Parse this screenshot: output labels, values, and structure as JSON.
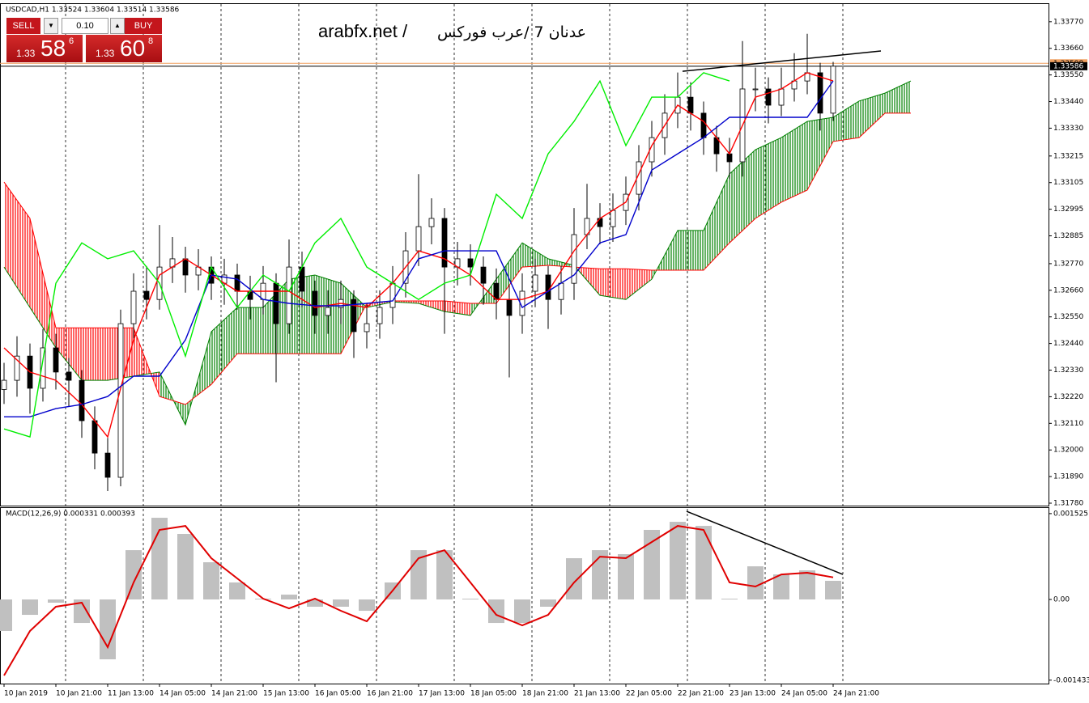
{
  "header": {
    "symbol_info": "USDCAD,H1  1.33524 1.33604 1.33514 1.33586"
  },
  "trade_panel": {
    "sell": "SELL",
    "buy": "BUY",
    "lot": "0.10",
    "bid": {
      "prefix": "1.33",
      "pips": "58",
      "fraction": "6"
    },
    "ask": {
      "prefix": "1.33",
      "pips": "60",
      "fraction": "8"
    }
  },
  "watermark": {
    "site": "arabfx.net /",
    "author": "عدنان 7 /عرب فوركس"
  },
  "chart_data": [
    {
      "type": "candlestick",
      "x": [
        0,
        4,
        8,
        12,
        16,
        20,
        24,
        28,
        32,
        36,
        40,
        44,
        48,
        52,
        56,
        60,
        64,
        68,
        72,
        76,
        80,
        84,
        88,
        92,
        96,
        100,
        104,
        108,
        112,
        116,
        120,
        124,
        128,
        132,
        136,
        140,
        144,
        148,
        152,
        156,
        160,
        164,
        168,
        172,
        176,
        180,
        184,
        188,
        192,
        196,
        200,
        204,
        208,
        212,
        216,
        220,
        224,
        228,
        232,
        236,
        240,
        244,
        248,
        252,
        256
      ],
      "open": [
        1.3225,
        1.32288,
        1.32388,
        1.32255,
        1.32422,
        1.32322,
        1.32288,
        1.32121,
        1.31987,
        1.31887,
        1.32522,
        1.32656,
        1.32622,
        1.32756,
        1.3279,
        1.32723,
        1.32756,
        1.32689,
        1.32723,
        1.32656,
        1.32622,
        1.32689,
        1.32522,
        1.32756,
        1.32656,
        1.32556,
        1.32589,
        1.32622,
        1.32489,
        1.32522,
        1.32589,
        1.32689,
        1.32823,
        1.32923,
        1.32957,
        1.32756,
        1.3279,
        1.32756,
        1.32689,
        1.32622,
        1.32556,
        1.32656,
        1.32723,
        1.32622,
        1.32689,
        1.3289,
        1.32957,
        1.32923,
        1.3299,
        1.33057,
        1.33191,
        1.33291,
        1.33392,
        1.33458,
        1.33392,
        1.33291,
        1.33224,
        1.33191,
        1.33492,
        1.33492,
        1.33425,
        1.33492,
        1.33525,
        1.33559,
        1.33392
      ],
      "high": [
        1.3236,
        1.3247,
        1.3244,
        1.325,
        1.3248,
        1.3238,
        1.3233,
        1.3218,
        1.3205,
        1.3258,
        1.3273,
        1.3276,
        1.3293,
        1.3288,
        1.3284,
        1.3283,
        1.328,
        1.3279,
        1.3277,
        1.3272,
        1.3276,
        1.3273,
        1.3287,
        1.3282,
        1.327,
        1.3266,
        1.327,
        1.3266,
        1.326,
        1.3266,
        1.3276,
        1.329,
        1.3314,
        1.3304,
        1.33,
        1.3286,
        1.3285,
        1.328,
        1.3275,
        1.3268,
        1.3273,
        1.3279,
        1.3276,
        1.3276,
        1.33,
        1.331,
        1.3302,
        1.3306,
        1.3313,
        1.3326,
        1.3336,
        1.3347,
        1.3356,
        1.3352,
        1.3344,
        1.3334,
        1.3329,
        1.3369,
        1.3358,
        1.3354,
        1.3358,
        1.3364,
        1.3372,
        1.336,
        1.33604
      ],
      "low": [
        1.3219,
        1.3222,
        1.3215,
        1.322,
        1.3225,
        1.3218,
        1.3205,
        1.3192,
        1.3183,
        1.3185,
        1.3246,
        1.3254,
        1.3258,
        1.3269,
        1.3265,
        1.3266,
        1.3262,
        1.326,
        1.3258,
        1.3254,
        1.3256,
        1.3228,
        1.3248,
        1.3259,
        1.3248,
        1.3248,
        1.3252,
        1.3238,
        1.3242,
        1.3246,
        1.3252,
        1.3263,
        1.3276,
        1.3285,
        1.3248,
        1.3268,
        1.3268,
        1.326,
        1.3254,
        1.323,
        1.3248,
        1.3259,
        1.325,
        1.3256,
        1.3262,
        1.3283,
        1.3285,
        1.3286,
        1.3293,
        1.3299,
        1.3313,
        1.3322,
        1.3333,
        1.3332,
        1.3322,
        1.3315,
        1.3312,
        1.3313,
        1.334,
        1.3335,
        1.3338,
        1.3344,
        1.3347,
        1.3332,
        1.3336
      ],
      "close": [
        1.32288,
        1.32388,
        1.32255,
        1.32422,
        1.32322,
        1.32288,
        1.32121,
        1.31987,
        1.31887,
        1.32522,
        1.32656,
        1.32622,
        1.32756,
        1.3279,
        1.32723,
        1.32756,
        1.32689,
        1.32723,
        1.32656,
        1.32622,
        1.32689,
        1.32522,
        1.32756,
        1.32656,
        1.32556,
        1.32589,
        1.32622,
        1.32489,
        1.32522,
        1.32589,
        1.32689,
        1.32823,
        1.32923,
        1.32957,
        1.32756,
        1.3279,
        1.32756,
        1.32689,
        1.32622,
        1.32556,
        1.32656,
        1.32723,
        1.32622,
        1.32689,
        1.3289,
        1.32957,
        1.32923,
        1.3299,
        1.33057,
        1.33191,
        1.33291,
        1.33392,
        1.33458,
        1.33392,
        1.33291,
        1.33224,
        1.33191,
        1.33492,
        1.33492,
        1.33425,
        1.33492,
        1.33525,
        1.33559,
        1.33392,
        1.33586
      ],
      "up_color": "#ffffff",
      "down_color": "#000000",
      "overlays": [
        {
          "color": "#ff0000",
          "x": [
            0,
            8,
            16,
            24,
            32,
            40,
            48,
            56,
            64,
            72,
            80,
            88,
            96,
            104,
            112,
            120,
            128,
            136,
            144,
            152,
            160,
            168,
            176,
            184,
            192,
            200,
            208,
            216,
            224,
            232,
            240,
            248,
            256
          ],
          "values": [
            1.32422,
            1.32322,
            1.32288,
            1.32188,
            1.32054,
            1.32455,
            1.32723,
            1.3279,
            1.32723,
            1.32656,
            1.32656,
            1.32656,
            1.32589,
            1.32606,
            1.32589,
            1.32689,
            1.32823,
            1.3279,
            1.32723,
            1.32622,
            1.32622,
            1.32656,
            1.32823,
            1.32957,
            1.33024,
            1.33258,
            1.33425,
            1.33358,
            1.33224,
            1.33458,
            1.33492,
            1.33559,
            1.33525
          ]
        },
        {
          "color": "#0000cc",
          "x": [
            0,
            8,
            16,
            24,
            32,
            40,
            48,
            56,
            64,
            72,
            80,
            88,
            96,
            104,
            112,
            120,
            128,
            136,
            144,
            152,
            160,
            168,
            176,
            184,
            192,
            200,
            208,
            216,
            224,
            232,
            240,
            248,
            256
          ],
          "values": [
            1.32137,
            1.32137,
            1.32171,
            1.32188,
            1.32221,
            1.32305,
            1.32305,
            1.32455,
            1.32723,
            1.32706,
            1.32622,
            1.32606,
            1.32596,
            1.32596,
            1.32606,
            1.32616,
            1.3279,
            1.32823,
            1.32823,
            1.32823,
            1.32589,
            1.32656,
            1.32723,
            1.32856,
            1.3289,
            1.33157,
            1.33224,
            1.33291,
            1.33375,
            1.33375,
            1.33375,
            1.33375,
            1.33525
          ]
        },
        {
          "color": "#00ee00",
          "x": [
            0,
            8,
            16,
            24,
            32,
            40,
            48,
            56,
            64,
            72,
            80,
            88,
            96,
            104,
            112,
            120,
            128,
            136,
            144,
            152,
            160,
            168,
            176,
            184,
            192,
            200,
            208,
            216,
            224,
            232,
            240,
            248,
            256
          ],
          "values": [
            1.32087,
            1.32054,
            1.32689,
            1.32856,
            1.3279,
            1.32823,
            1.32689,
            1.32388,
            1.32756,
            1.32589,
            1.32723,
            1.32656,
            1.32856,
            1.32957,
            1.32756,
            1.32689,
            1.32622,
            1.32689,
            1.32723,
            1.33057,
            1.32957,
            1.33224,
            1.33358,
            1.33525,
            1.33258,
            1.33458,
            1.33458,
            1.33559,
            1.33525,
            null,
            null,
            null,
            null
          ]
        }
      ],
      "cloud": {
        "x": [
          0,
          8,
          16,
          24,
          32,
          40,
          48,
          56,
          64,
          72,
          80,
          88,
          96,
          104,
          112,
          120,
          128,
          136,
          144,
          152,
          160,
          168,
          176,
          184,
          192,
          200,
          208,
          216,
          224,
          232,
          240,
          248,
          256,
          264,
          272,
          280
        ],
        "span_a": [
          1.32756,
          1.32589,
          1.32422,
          1.32288,
          1.32288,
          1.32305,
          1.32322,
          1.32104,
          1.32489,
          1.32589,
          1.32589,
          1.32706,
          1.32723,
          1.32689,
          1.32589,
          1.32612,
          1.32606,
          1.32572,
          1.32556,
          1.32706,
          1.32856,
          1.3279,
          1.32763,
          1.32639,
          1.32622,
          1.32706,
          1.32907,
          1.32907,
          1.33141,
          1.33241,
          1.33291,
          1.33358,
          1.33375,
          1.33442,
          1.33475,
          1.33525
        ],
        "span_b": [
          1.33107,
          1.32957,
          1.32505,
          1.32505,
          1.32505,
          1.32505,
          1.32221,
          1.32188,
          1.32271,
          1.32398,
          1.32398,
          1.32398,
          1.32398,
          1.32398,
          1.32606,
          1.32616,
          1.32616,
          1.32616,
          1.32606,
          1.32606,
          1.32756,
          1.32763,
          1.32756,
          1.32749,
          1.32749,
          1.32743,
          1.32743,
          1.32743,
          1.32856,
          1.32957,
          1.33024,
          1.33074,
          1.33275,
          1.33291,
          1.33392,
          1.33392
        ],
        "up_color": "#008000",
        "down_color": "#ff0000"
      },
      "trendlines": [
        {
          "x": [
            209.5,
            270.75
          ],
          "y": [
            1.33565,
            1.33649
          ],
          "color": "#000000"
        }
      ],
      "price_lines": [
        {
          "value": 1.33598,
          "color": "#f0a060"
        },
        {
          "value": 1.33586,
          "color": "#000000"
        }
      ],
      "day_separators": [
        19,
        43,
        67,
        91,
        115,
        139,
        163,
        187,
        211,
        235,
        259
      ],
      "xlim": [
        -1.25,
        322.5
      ],
      "xticks": [
        {
          "value": 0,
          "label": "10 Jan 2019"
        },
        {
          "value": 16,
          "label": "10 Jan 21:00"
        },
        {
          "value": 32,
          "label": "11 Jan 13:00"
        },
        {
          "value": 48,
          "label": "14 Jan 05:00"
        },
        {
          "value": 64,
          "label": "14 Jan 21:00"
        },
        {
          "value": 80,
          "label": "15 Jan 13:00"
        },
        {
          "value": 96,
          "label": "16 Jan 05:00"
        },
        {
          "value": 112,
          "label": "16 Jan 21:00"
        },
        {
          "value": 128,
          "label": "17 Jan 13:00"
        },
        {
          "value": 144,
          "label": "18 Jan 05:00"
        },
        {
          "value": 160,
          "label": "18 Jan 21:00"
        },
        {
          "value": 176,
          "label": "21 Jan 13:00"
        },
        {
          "value": 192,
          "label": "22 Jan 05:00"
        },
        {
          "value": 208,
          "label": "22 Jan 21:00"
        },
        {
          "value": 224,
          "label": "23 Jan 13:00"
        },
        {
          "value": 240,
          "label": "24 Jan 05:00"
        },
        {
          "value": 256,
          "label": "24 Jan 21:00"
        }
      ],
      "ylim": [
        1.3177,
        1.33843
      ],
      "yticks": [
        {
          "value": 1.3377,
          "label": "1.33770"
        },
        {
          "value": 1.3366,
          "label": "1.33660"
        },
        {
          "value": 1.3355,
          "label": "1.33550"
        },
        {
          "value": 1.3344,
          "label": "1.33440"
        },
        {
          "value": 1.3333,
          "label": "1.33330"
        },
        1.33215,
        1.33105,
        1.32995,
        1.32885,
        {
          "value": 1.3277,
          "label": "1.32770"
        },
        {
          "value": 1.3266,
          "label": "1.32660"
        },
        {
          "value": 1.3255,
          "label": "1.32550"
        },
        {
          "value": 1.3244,
          "label": "1.32440"
        },
        {
          "value": 1.3233,
          "label": "1.32330"
        },
        {
          "value": 1.3222,
          "label": "1.32220"
        },
        {
          "value": 1.3211,
          "label": "1.32110"
        },
        {
          "value": 1.32,
          "label": "1.32000"
        },
        {
          "value": 1.3189,
          "label": "1.31890"
        },
        {
          "value": 1.3178,
          "label": "1.31780"
        }
      ]
    },
    {
      "type": "macd",
      "title": "MACD(12,26,9) 0.000331 0.000393",
      "x": [
        0,
        8,
        16,
        24,
        32,
        40,
        48,
        56,
        64,
        72,
        80,
        88,
        96,
        104,
        112,
        120,
        128,
        136,
        144,
        152,
        160,
        168,
        176,
        184,
        192,
        200,
        208,
        216,
        224,
        232,
        240,
        248,
        256
      ],
      "histogram": [
        -0.00056,
        -0.000273,
        -5.7e-05,
        -0.000417,
        -0.001063,
        0.000876,
        0.001451,
        0.001164,
        0.000661,
        0.000302,
        1.4e-05,
        8.6e-05,
        -0.000129,
        -0.000129,
        -0.000201,
        0.000302,
        0.000876,
        0.000876,
        1.4e-05,
        -0.000417,
        -0.000417,
        -0.000129,
        0.000733,
        0.000876,
        0.000805,
        0.001236,
        0.001379,
        0.001307,
        1.4e-05,
        0.000589,
        0.000445,
        0.000517,
        0.000331
      ],
      "signal": [
        -0.001351,
        -0.00056,
        -0.000129,
        -5.7e-05,
        -0.000848,
        0.000302,
        0.001236,
        0.001307,
        0.000733,
        0.000374,
        1.4e-05,
        -0.000158,
        1.4e-05,
        -0.000201,
        -0.000388,
        0.000158,
        0.000733,
        0.000876,
        0.000302,
        -0.000273,
        -0.00046,
        -0.000273,
        0.000302,
        0.000761,
        0.000733,
        0.00102,
        0.001307,
        0.001236,
        0.000302,
        0.00023,
        0.000445,
        0.000474,
        0.000393
      ],
      "histogram_color": "#c0c0c0",
      "signal_color": "#e00000",
      "trendlines": [
        {
          "x": [
            210.75,
            259
          ],
          "y": [
            0.001566,
            0.000445
          ],
          "color": "#000000"
        }
      ],
      "xlim": [
        -1.25,
        322.5
      ],
      "ylim": [
        -0.001494,
        0.001624
      ],
      "yticks": [
        0.001525,
        {
          "value": 0,
          "label": "0.00"
        },
        -0.001433
      ]
    }
  ]
}
